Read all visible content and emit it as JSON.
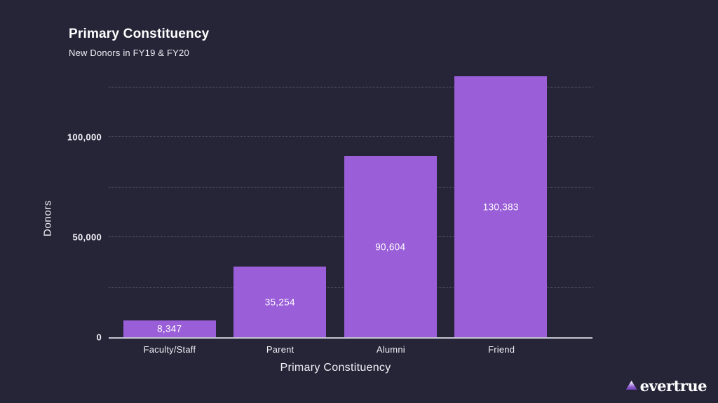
{
  "page": {
    "background_color": "#262437",
    "text_color": "#f2f1f7"
  },
  "header": {
    "title": "Primary Constituency",
    "subtitle": "New Donors in FY19 & FY20"
  },
  "chart_data": {
    "type": "bar",
    "title": "Primary Constituency",
    "subtitle": "New Donors in FY19 & FY20",
    "categories": [
      "Faculty/Staff",
      "Parent",
      "Alumni",
      "Friend"
    ],
    "values": [
      8347,
      35254,
      90604,
      130383
    ],
    "value_labels": [
      "8,347",
      "35,254",
      "90,604",
      "130,383"
    ],
    "xlabel": "Primary Constituency",
    "ylabel": "Donors",
    "ylim": [
      0,
      133000
    ],
    "yticks": [
      {
        "value": 0,
        "label": "0"
      },
      {
        "value": 50000,
        "label": "50,000"
      },
      {
        "value": 100000,
        "label": "100,000"
      }
    ],
    "gridlines": [
      25000,
      50000,
      75000,
      100000,
      125000
    ],
    "grid_style": "dotted horizontal",
    "legend": "none",
    "bar_color": "#9a5ed8",
    "value_label_position": "inside-center"
  },
  "footer": {
    "brand": "evertrue",
    "logo_icon": "mountain-triangle-icon",
    "logo_gradient_top": "#f4effc",
    "logo_gradient_bottom": "#6d41b2"
  }
}
